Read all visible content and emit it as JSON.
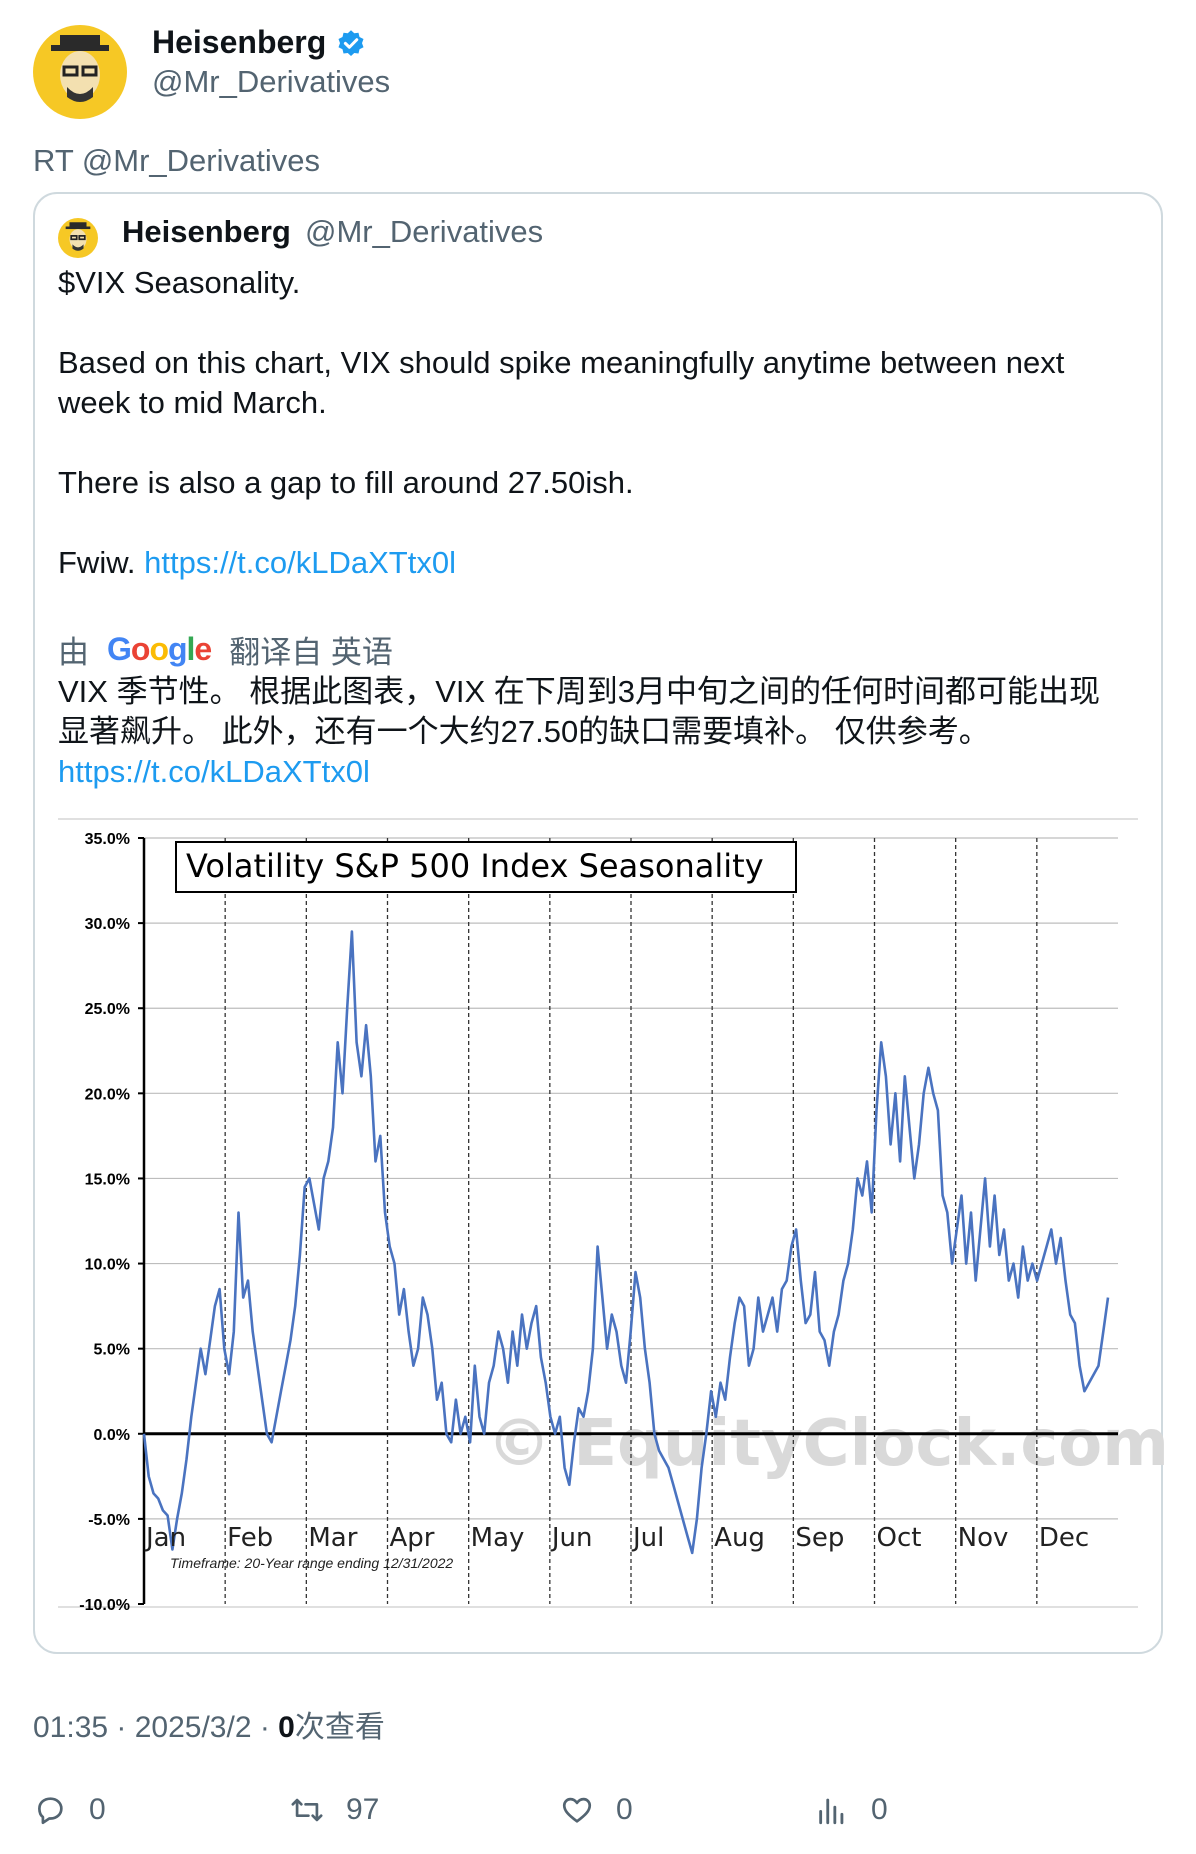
{
  "author": {
    "name": "Heisenberg",
    "handle": "@Mr_Derivatives"
  },
  "retweet_text": "RT @Mr_Derivatives",
  "quoted": {
    "name": "Heisenberg",
    "handle": "@Mr_Derivatives",
    "lines": [
      "$VIX Seasonality.",
      "Based on this chart, VIX should spike meaningfully anytime between next",
      "week to mid March.",
      "There is also a gap to fill around 27.50ish."
    ],
    "fwiw_prefix": "Fwiw. ",
    "link": "https://t.co/kLDaXTtx0l",
    "translation": {
      "by": "由",
      "provider": "Google",
      "from": "翻译自 英语",
      "lines": [
        "VIX 季节性。 根据此图表，VIX 在下周到3月中旬之间的任何时间都可能出现",
        "显著飙升。 此外，还有一个大约27.50的缺口需要填补。 仅供参考。"
      ],
      "link": "https://t.co/kLDaXTtx0l"
    }
  },
  "chart_data": {
    "type": "line",
    "title": "Volatility S&P 500 Index Seasonality",
    "months": [
      "Jan",
      "Feb",
      "Mar",
      "Apr",
      "May",
      "Jun",
      "Jul",
      "Aug",
      "Sep",
      "Oct",
      "Nov",
      "Dec"
    ],
    "yticks": [
      "35.0%",
      "30.0%",
      "25.0%",
      "20.0%",
      "15.0%",
      "10.0%",
      "5.0%",
      "0.0%",
      "-5.0%",
      "-10.0%"
    ],
    "ylim": [
      -10,
      35
    ],
    "timeframe": "Timeframe: 20-Year range ending 12/31/2022",
    "watermark": "© EquityClock.com",
    "series": [
      {
        "values": [
          0,
          -2.5,
          -3.5,
          -3.8,
          -4.5,
          -4.8,
          -6.8,
          -5,
          -3.5,
          -1.5,
          1,
          3,
          5,
          3.5,
          5.5,
          7.5,
          8.5,
          5,
          3.5,
          6,
          13,
          8,
          9,
          6,
          4,
          2,
          0,
          -0.5,
          1,
          2.5,
          4,
          5.5,
          7.5,
          10.5,
          14.5,
          15,
          13.5,
          12,
          15,
          16,
          18,
          23,
          20,
          25,
          29.5,
          23,
          21,
          24,
          21,
          16,
          17.5,
          13,
          11,
          10,
          7,
          8.5,
          6,
          4,
          5,
          8,
          7,
          5,
          2,
          3,
          0,
          -0.5,
          2,
          0,
          1,
          -0.5,
          4,
          1,
          0,
          3,
          4,
          6,
          5,
          3,
          6,
          4,
          7,
          5,
          6.5,
          7.5,
          4.5,
          3,
          1,
          0,
          1,
          -2,
          -3,
          -0.5,
          1.5,
          1,
          2.5,
          5,
          11,
          8,
          5,
          7,
          6,
          4,
          3,
          6,
          9.5,
          8,
          5,
          3,
          0,
          -1,
          -1.5,
          -2,
          -3,
          -4,
          -5,
          -6,
          -7,
          -5,
          -2,
          0,
          2.5,
          1,
          3,
          2,
          4.5,
          6.5,
          8,
          7.5,
          4,
          5,
          8,
          6,
          7,
          8,
          6,
          8.5,
          9,
          11,
          12,
          9,
          6.5,
          7,
          9.5,
          6,
          5.5,
          4,
          6,
          7,
          9,
          10,
          12,
          15,
          14,
          16,
          13,
          19,
          23,
          21,
          17,
          20,
          16,
          21,
          18,
          15,
          17,
          20,
          21.5,
          20,
          19,
          14,
          13,
          10,
          12,
          14,
          10,
          13,
          9,
          12,
          15,
          11,
          14,
          10.5,
          12,
          9,
          10,
          8,
          11,
          9,
          10,
          9,
          10,
          11,
          12,
          10,
          11.5,
          9,
          7,
          6.5,
          4,
          2.5,
          3,
          3.5,
          4,
          6,
          8
        ]
      }
    ]
  },
  "meta": {
    "time": "01:35 · 2025/3/2 · ",
    "views_count": "0",
    "views_label": "次查看"
  },
  "actions": {
    "replies": "0",
    "retweets": "97",
    "likes": "0",
    "views": "0"
  },
  "colors": {
    "link": "#1d9bf0",
    "verified": "#1d9bf0",
    "line": "#4a73c0",
    "avatar": "#f6c825"
  }
}
